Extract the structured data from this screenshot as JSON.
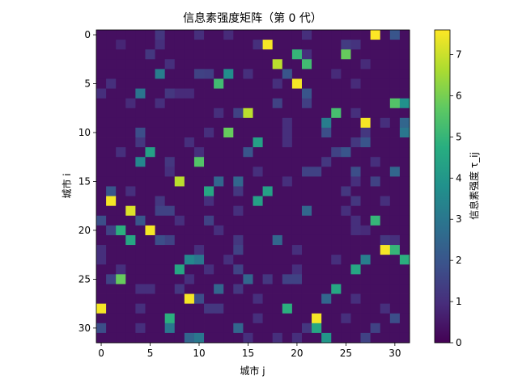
{
  "chart_data": {
    "type": "heatmap",
    "title": "信息素强度矩阵（第 0 代）",
    "xlabel": "城市 j",
    "ylabel": "城市 i",
    "colorbar_label": "信息素强度 τ_ij",
    "colormap": "viridis",
    "vmin": 0,
    "vmax": 7.6,
    "x_ticks": [
      0,
      5,
      10,
      15,
      20,
      25,
      30
    ],
    "y_ticks": [
      0,
      5,
      10,
      15,
      20,
      25,
      30
    ],
    "colorbar_ticks": [
      0,
      1,
      2,
      3,
      4,
      5,
      6,
      7
    ],
    "rows": 32,
    "cols": 32,
    "base_value": 0.3,
    "cells": [
      {
        "i": 0,
        "j": 28,
        "v": 7.6
      },
      {
        "i": 0,
        "j": 30,
        "v": 2.0
      },
      {
        "i": 0,
        "j": 6,
        "v": 1.2
      },
      {
        "i": 0,
        "j": 10,
        "v": 1.0
      },
      {
        "i": 0,
        "j": 13,
        "v": 0.9
      },
      {
        "i": 0,
        "j": 21,
        "v": 1.0
      },
      {
        "i": 1,
        "j": 17,
        "v": 7.5
      },
      {
        "i": 1,
        "j": 25,
        "v": 1.3
      },
      {
        "i": 1,
        "j": 26,
        "v": 1.1
      },
      {
        "i": 1,
        "j": 16,
        "v": 1.0
      },
      {
        "i": 1,
        "j": 2,
        "v": 0.8
      },
      {
        "i": 1,
        "j": 6,
        "v": 1.0
      },
      {
        "i": 2,
        "j": 20,
        "v": 5.0
      },
      {
        "i": 2,
        "j": 25,
        "v": 5.8
      },
      {
        "i": 2,
        "j": 5,
        "v": 1.2
      },
      {
        "i": 2,
        "j": 21,
        "v": 1.0
      },
      {
        "i": 3,
        "j": 18,
        "v": 6.8
      },
      {
        "i": 3,
        "j": 21,
        "v": 5.2
      },
      {
        "i": 3,
        "j": 7,
        "v": 1.0
      },
      {
        "i": 3,
        "j": 27,
        "v": 0.9
      },
      {
        "i": 4,
        "j": 6,
        "v": 3.2
      },
      {
        "i": 4,
        "j": 13,
        "v": 3.7
      },
      {
        "i": 4,
        "j": 19,
        "v": 2.0
      },
      {
        "i": 4,
        "j": 10,
        "v": 1.5
      },
      {
        "i": 4,
        "j": 11,
        "v": 1.4
      },
      {
        "i": 4,
        "j": 15,
        "v": 1.0
      },
      {
        "i": 4,
        "j": 24,
        "v": 0.9
      },
      {
        "i": 5,
        "j": 20,
        "v": 7.5
      },
      {
        "i": 5,
        "j": 12,
        "v": 5.2
      },
      {
        "i": 5,
        "j": 1,
        "v": 1.0
      },
      {
        "i": 5,
        "j": 26,
        "v": 0.9
      },
      {
        "i": 5,
        "j": 18,
        "v": 1.0
      },
      {
        "i": 6,
        "j": 4,
        "v": 2.9
      },
      {
        "i": 6,
        "j": 7,
        "v": 1.2
      },
      {
        "i": 6,
        "j": 21,
        "v": 2.0
      },
      {
        "i": 6,
        "j": 8,
        "v": 0.9
      },
      {
        "i": 6,
        "j": 0,
        "v": 1.0
      },
      {
        "i": 6,
        "j": 9,
        "v": 0.9
      },
      {
        "i": 7,
        "j": 30,
        "v": 5.5
      },
      {
        "i": 7,
        "j": 31,
        "v": 3.8
      },
      {
        "i": 7,
        "j": 18,
        "v": 1.5
      },
      {
        "i": 7,
        "j": 21,
        "v": 1.4
      },
      {
        "i": 7,
        "j": 6,
        "v": 1.0
      },
      {
        "i": 7,
        "j": 3,
        "v": 0.9
      },
      {
        "i": 8,
        "j": 15,
        "v": 6.8
      },
      {
        "i": 8,
        "j": 24,
        "v": 5.3
      },
      {
        "i": 8,
        "j": 14,
        "v": 1.5
      },
      {
        "i": 8,
        "j": 12,
        "v": 1.0
      },
      {
        "i": 8,
        "j": 26,
        "v": 1.0
      },
      {
        "i": 9,
        "j": 27,
        "v": 7.5
      },
      {
        "i": 9,
        "j": 23,
        "v": 3.2
      },
      {
        "i": 9,
        "j": 31,
        "v": 2.5
      },
      {
        "i": 9,
        "j": 29,
        "v": 1.0
      },
      {
        "i": 9,
        "j": 19,
        "v": 1.0
      },
      {
        "i": 10,
        "j": 4,
        "v": 1.8
      },
      {
        "i": 10,
        "j": 13,
        "v": 5.8
      },
      {
        "i": 10,
        "j": 23,
        "v": 1.8
      },
      {
        "i": 10,
        "j": 31,
        "v": 3.0
      },
      {
        "i": 10,
        "j": 11,
        "v": 1.0
      },
      {
        "i": 10,
        "j": 27,
        "v": 1.2
      },
      {
        "i": 10,
        "j": 19,
        "v": 1.0
      },
      {
        "i": 11,
        "j": 16,
        "v": 4.3
      },
      {
        "i": 11,
        "j": 4,
        "v": 1.2
      },
      {
        "i": 11,
        "j": 27,
        "v": 2.0
      },
      {
        "i": 11,
        "j": 19,
        "v": 1.0
      },
      {
        "i": 11,
        "j": 26,
        "v": 1.2
      },
      {
        "i": 11,
        "j": 9,
        "v": 1.0
      },
      {
        "i": 12,
        "j": 5,
        "v": 4.3
      },
      {
        "i": 12,
        "j": 15,
        "v": 2.0
      },
      {
        "i": 12,
        "j": 25,
        "v": 2.0
      },
      {
        "i": 12,
        "j": 24,
        "v": 1.5
      },
      {
        "i": 12,
        "j": 2,
        "v": 1.0
      },
      {
        "i": 12,
        "j": 10,
        "v": 1.0
      },
      {
        "i": 13,
        "j": 4,
        "v": 3.5
      },
      {
        "i": 13,
        "j": 10,
        "v": 5.5
      },
      {
        "i": 13,
        "j": 7,
        "v": 1.2
      },
      {
        "i": 13,
        "j": 28,
        "v": 1.0
      },
      {
        "i": 13,
        "j": 23,
        "v": 1.2
      },
      {
        "i": 14,
        "j": 21,
        "v": 1.5
      },
      {
        "i": 14,
        "j": 22,
        "v": 1.5
      },
      {
        "i": 14,
        "j": 26,
        "v": 1.8
      },
      {
        "i": 14,
        "j": 30,
        "v": 2.5
      },
      {
        "i": 14,
        "j": 7,
        "v": 1.0
      },
      {
        "i": 14,
        "j": 16,
        "v": 1.0
      },
      {
        "i": 15,
        "j": 8,
        "v": 6.8
      },
      {
        "i": 15,
        "j": 12,
        "v": 2.5
      },
      {
        "i": 15,
        "j": 14,
        "v": 2.5
      },
      {
        "i": 15,
        "j": 19,
        "v": 1.0
      },
      {
        "i": 15,
        "j": 26,
        "v": 1.0
      },
      {
        "i": 15,
        "j": 28,
        "v": 1.5
      },
      {
        "i": 16,
        "j": 11,
        "v": 4.5
      },
      {
        "i": 16,
        "j": 17,
        "v": 4.3
      },
      {
        "i": 16,
        "j": 1,
        "v": 2.0
      },
      {
        "i": 16,
        "j": 14,
        "v": 1.2
      },
      {
        "i": 16,
        "j": 25,
        "v": 1.2
      },
      {
        "i": 16,
        "j": 3,
        "v": 1.0
      },
      {
        "i": 17,
        "j": 1,
        "v": 7.5
      },
      {
        "i": 17,
        "j": 16,
        "v": 4.3
      },
      {
        "i": 17,
        "j": 6,
        "v": 1.2
      },
      {
        "i": 17,
        "j": 26,
        "v": 1.2
      },
      {
        "i": 17,
        "j": 29,
        "v": 1.0
      },
      {
        "i": 17,
        "j": 11,
        "v": 1.0
      },
      {
        "i": 18,
        "j": 3,
        "v": 7.2
      },
      {
        "i": 18,
        "j": 21,
        "v": 2.5
      },
      {
        "i": 18,
        "j": 6,
        "v": 1.5
      },
      {
        "i": 18,
        "j": 7,
        "v": 1.5
      },
      {
        "i": 18,
        "j": 25,
        "v": 1.0
      },
      {
        "i": 18,
        "j": 14,
        "v": 1.0
      },
      {
        "i": 19,
        "j": 0,
        "v": 1.8
      },
      {
        "i": 19,
        "j": 4,
        "v": 2.0
      },
      {
        "i": 19,
        "j": 28,
        "v": 5.0
      },
      {
        "i": 19,
        "j": 11,
        "v": 1.5
      },
      {
        "i": 19,
        "j": 26,
        "v": 1.0
      },
      {
        "i": 19,
        "j": 8,
        "v": 1.0
      },
      {
        "i": 20,
        "j": 2,
        "v": 4.8
      },
      {
        "i": 20,
        "j": 5,
        "v": 7.5
      },
      {
        "i": 20,
        "j": 1,
        "v": 1.5
      },
      {
        "i": 20,
        "j": 26,
        "v": 1.0
      },
      {
        "i": 20,
        "j": 12,
        "v": 1.0
      },
      {
        "i": 20,
        "j": 27,
        "v": 0.9
      },
      {
        "i": 21,
        "j": 3,
        "v": 4.5
      },
      {
        "i": 21,
        "j": 18,
        "v": 2.5
      },
      {
        "i": 21,
        "j": 6,
        "v": 1.8
      },
      {
        "i": 21,
        "j": 7,
        "v": 1.5
      },
      {
        "i": 21,
        "j": 14,
        "v": 1.2
      },
      {
        "i": 21,
        "j": 29,
        "v": 1.2
      },
      {
        "i": 21,
        "j": 30,
        "v": 1.0
      },
      {
        "i": 22,
        "j": 29,
        "v": 7.5
      },
      {
        "i": 22,
        "j": 30,
        "v": 5.0
      },
      {
        "i": 22,
        "j": 14,
        "v": 1.5
      },
      {
        "i": 22,
        "j": 0,
        "v": 1.0
      },
      {
        "i": 22,
        "j": 10,
        "v": 1.0
      },
      {
        "i": 22,
        "j": 20,
        "v": 1.0
      },
      {
        "i": 23,
        "j": 9,
        "v": 3.5
      },
      {
        "i": 23,
        "j": 10,
        "v": 3.0
      },
      {
        "i": 23,
        "j": 27,
        "v": 3.2
      },
      {
        "i": 23,
        "j": 31,
        "v": 4.8
      },
      {
        "i": 23,
        "j": 13,
        "v": 1.0
      },
      {
        "i": 23,
        "j": 24,
        "v": 1.0
      },
      {
        "i": 23,
        "j": 0,
        "v": 1.0
      },
      {
        "i": 24,
        "j": 8,
        "v": 4.5
      },
      {
        "i": 24,
        "j": 26,
        "v": 4.5
      },
      {
        "i": 24,
        "j": 14,
        "v": 1.5
      },
      {
        "i": 24,
        "j": 11,
        "v": 1.0
      },
      {
        "i": 24,
        "j": 20,
        "v": 1.0
      },
      {
        "i": 24,
        "j": 2,
        "v": 1.0
      },
      {
        "i": 25,
        "j": 2,
        "v": 5.8
      },
      {
        "i": 25,
        "j": 15,
        "v": 2.5
      },
      {
        "i": 25,
        "j": 1,
        "v": 1.5
      },
      {
        "i": 25,
        "j": 19,
        "v": 1.5
      },
      {
        "i": 25,
        "j": 20,
        "v": 1.5
      },
      {
        "i": 25,
        "j": 17,
        "v": 1.2
      },
      {
        "i": 25,
        "j": 9,
        "v": 1.0
      },
      {
        "i": 26,
        "j": 12,
        "v": 2.5
      },
      {
        "i": 26,
        "j": 24,
        "v": 4.5
      },
      {
        "i": 26,
        "j": 14,
        "v": 1.2
      },
      {
        "i": 26,
        "j": 8,
        "v": 1.2
      },
      {
        "i": 26,
        "j": 5,
        "v": 1.0
      },
      {
        "i": 26,
        "j": 4,
        "v": 1.0
      },
      {
        "i": 27,
        "j": 9,
        "v": 7.5
      },
      {
        "i": 27,
        "j": 10,
        "v": 1.8
      },
      {
        "i": 27,
        "j": 23,
        "v": 2.5
      },
      {
        "i": 27,
        "j": 16,
        "v": 1.0
      },
      {
        "i": 27,
        "j": 26,
        "v": 1.0
      },
      {
        "i": 28,
        "j": 0,
        "v": 7.5
      },
      {
        "i": 28,
        "j": 19,
        "v": 4.8
      },
      {
        "i": 28,
        "j": 11,
        "v": 1.2
      },
      {
        "i": 28,
        "j": 12,
        "v": 1.2
      },
      {
        "i": 28,
        "j": 4,
        "v": 1.0
      },
      {
        "i": 28,
        "j": 29,
        "v": 1.0
      },
      {
        "i": 29,
        "j": 7,
        "v": 4.8
      },
      {
        "i": 29,
        "j": 22,
        "v": 7.5
      },
      {
        "i": 29,
        "j": 30,
        "v": 1.8
      },
      {
        "i": 29,
        "j": 16,
        "v": 1.0
      },
      {
        "i": 29,
        "j": 25,
        "v": 1.0
      },
      {
        "i": 30,
        "j": 0,
        "v": 1.8
      },
      {
        "i": 30,
        "j": 7,
        "v": 3.0
      },
      {
        "i": 30,
        "j": 14,
        "v": 2.5
      },
      {
        "i": 30,
        "j": 22,
        "v": 4.5
      },
      {
        "i": 30,
        "j": 21,
        "v": 1.2
      },
      {
        "i": 30,
        "j": 28,
        "v": 1.5
      },
      {
        "i": 30,
        "j": 4,
        "v": 1.0
      },
      {
        "i": 31,
        "j": 9,
        "v": 2.5
      },
      {
        "i": 31,
        "j": 10,
        "v": 3.0
      },
      {
        "i": 31,
        "j": 23,
        "v": 4.0
      },
      {
        "i": 31,
        "j": 27,
        "v": 1.5
      },
      {
        "i": 31,
        "j": 15,
        "v": 1.0
      },
      {
        "i": 31,
        "j": 18,
        "v": 1.0
      },
      {
        "i": 31,
        "j": 20,
        "v": 1.0
      }
    ]
  }
}
